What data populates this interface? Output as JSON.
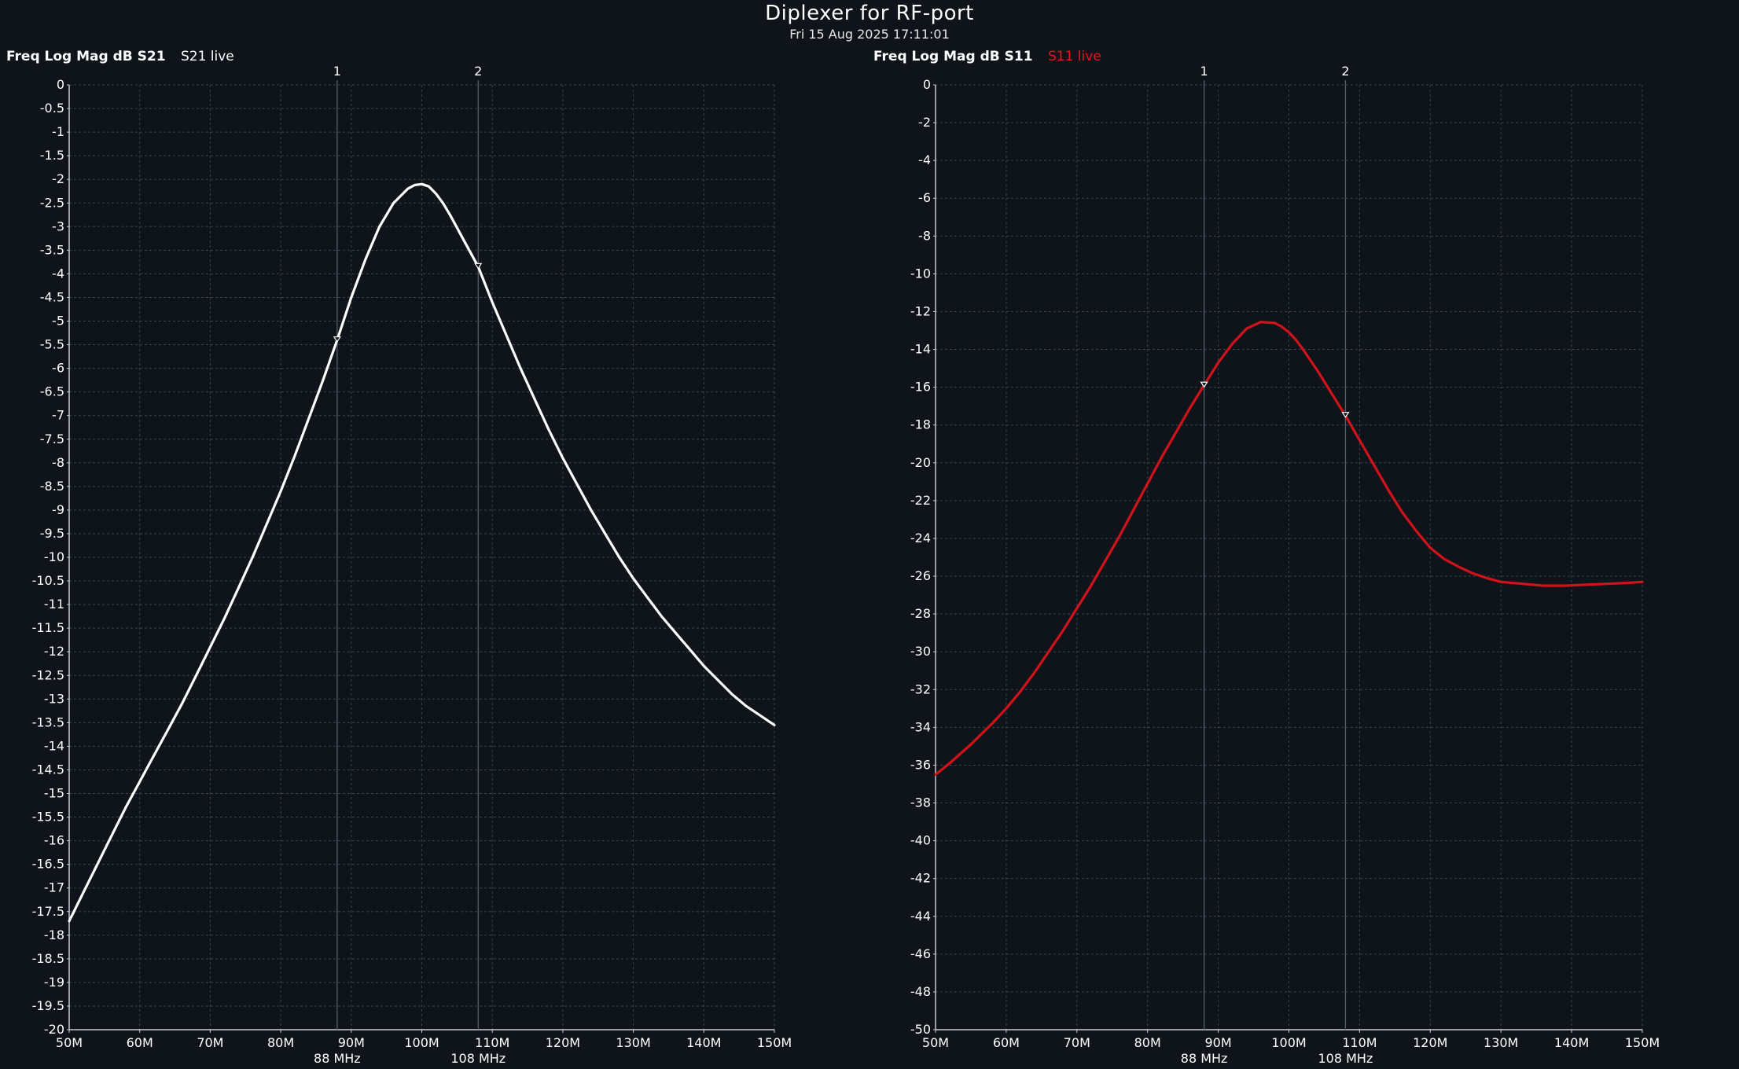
{
  "header": {
    "title": "Diplexer for RF-port",
    "timestamp": "Fri 15 Aug 2025 17:11:01"
  },
  "colors": {
    "background": "#0f141b",
    "grid": "#3a4350",
    "axis": "#c9ccd1",
    "marker_line": "#56606c"
  },
  "chart_data": [
    {
      "type": "line",
      "format_label": "Freq Log Mag dB S21",
      "live_label": "S21 live",
      "live_color": "#ffffff",
      "trace_color": "#ffffff",
      "xlabel": "Frequency",
      "ylabel": "dB",
      "xlim": [
        50,
        150
      ],
      "ylim": [
        -20,
        0
      ],
      "y_tick_step": 0.5,
      "x_ticks": [
        50,
        60,
        70,
        80,
        90,
        100,
        110,
        120,
        130,
        140,
        150
      ],
      "x_tick_labels": [
        "50M",
        "60M",
        "70M",
        "80M",
        "90M",
        "100M",
        "110M",
        "120M",
        "130M",
        "140M",
        "150M"
      ],
      "y_tick_labels": [
        "0",
        "-0.5",
        "-1",
        "-1.5",
        "-2",
        "-2.5",
        "-3",
        "-3.5",
        "-4",
        "-4.5",
        "-5",
        "-5.5",
        "-6",
        "-6.5",
        "-7",
        "-7.5",
        "-8",
        "-8.5",
        "-9",
        "-9.5",
        "-10",
        "-10.5",
        "-11",
        "-11.5",
        "-12",
        "-12.5",
        "-13",
        "-13.5",
        "-14",
        "-14.5",
        "-15",
        "-15.5",
        "-16",
        "-16.5",
        "-17",
        "-17.5",
        "-18",
        "-18.5",
        "-19",
        "-19.5",
        "-20"
      ],
      "markers": [
        {
          "id": "1",
          "freq": 88,
          "label": "88 MHz"
        },
        {
          "id": "2",
          "freq": 108,
          "label": "108 MHz"
        }
      ],
      "series": [
        {
          "name": "S21",
          "x": [
            50,
            52,
            55,
            58,
            60,
            62,
            64,
            66,
            68,
            70,
            72,
            74,
            76,
            78,
            80,
            82,
            84,
            86,
            88,
            90,
            92,
            94,
            96,
            98,
            99,
            100,
            101,
            102,
            103,
            104,
            106,
            108,
            110,
            112,
            114,
            116,
            118,
            120,
            122,
            124,
            126,
            128,
            130,
            132,
            134,
            136,
            138,
            140,
            142,
            144,
            146,
            148,
            150
          ],
          "values": [
            -17.7,
            -17.1,
            -16.2,
            -15.3,
            -14.75,
            -14.2,
            -13.65,
            -13.1,
            -12.5,
            -11.9,
            -11.3,
            -10.65,
            -10.0,
            -9.3,
            -8.6,
            -7.85,
            -7.05,
            -6.25,
            -5.4,
            -4.5,
            -3.7,
            -3.0,
            -2.5,
            -2.2,
            -2.12,
            -2.1,
            -2.15,
            -2.3,
            -2.5,
            -2.75,
            -3.3,
            -3.85,
            -4.6,
            -5.3,
            -6.0,
            -6.65,
            -7.3,
            -7.9,
            -8.45,
            -9.0,
            -9.5,
            -10.0,
            -10.45,
            -10.85,
            -11.25,
            -11.6,
            -11.95,
            -12.3,
            -12.6,
            -12.9,
            -13.15,
            -13.35,
            -13.55
          ]
        }
      ]
    },
    {
      "type": "line",
      "format_label": "Freq Log Mag dB S11",
      "live_label": "S11 live",
      "live_color": "#e8141e",
      "trace_color": "#d0131b",
      "xlabel": "Frequency",
      "ylabel": "dB",
      "xlim": [
        50,
        150
      ],
      "ylim": [
        -50,
        0
      ],
      "y_tick_step": 2,
      "x_ticks": [
        50,
        60,
        70,
        80,
        90,
        100,
        110,
        120,
        130,
        140,
        150
      ],
      "x_tick_labels": [
        "50M",
        "60M",
        "70M",
        "80M",
        "90M",
        "100M",
        "110M",
        "120M",
        "130M",
        "140M",
        "150M"
      ],
      "y_tick_labels": [
        "0",
        "-2",
        "-4",
        "-6",
        "-8",
        "-10",
        "-12",
        "-14",
        "-16",
        "-18",
        "-20",
        "-22",
        "-24",
        "-26",
        "-28",
        "-30",
        "-32",
        "-34",
        "-36",
        "-38",
        "-40",
        "-42",
        "-44",
        "-46",
        "-48",
        "-50"
      ],
      "markers": [
        {
          "id": "1",
          "freq": 88,
          "label": "88 MHz"
        },
        {
          "id": "2",
          "freq": 108,
          "label": "108 MHz"
        }
      ],
      "series": [
        {
          "name": "S11",
          "x": [
            50,
            52,
            55,
            58,
            60,
            62,
            64,
            66,
            68,
            70,
            72,
            74,
            76,
            78,
            80,
            82,
            84,
            86,
            88,
            90,
            92,
            94,
            96,
            98,
            99,
            100,
            101,
            102,
            104,
            106,
            108,
            110,
            112,
            114,
            116,
            118,
            120,
            122,
            124,
            126,
            128,
            130,
            133,
            136,
            139,
            142,
            145,
            148,
            150
          ],
          "values": [
            -36.5,
            -35.9,
            -34.9,
            -33.8,
            -33.0,
            -32.1,
            -31.1,
            -30.0,
            -28.9,
            -27.7,
            -26.5,
            -25.2,
            -23.9,
            -22.5,
            -21.1,
            -19.7,
            -18.4,
            -17.1,
            -15.9,
            -14.7,
            -13.7,
            -12.9,
            -12.55,
            -12.6,
            -12.8,
            -13.1,
            -13.5,
            -14.0,
            -15.1,
            -16.3,
            -17.5,
            -18.8,
            -20.1,
            -21.4,
            -22.6,
            -23.6,
            -24.5,
            -25.1,
            -25.5,
            -25.85,
            -26.1,
            -26.3,
            -26.4,
            -26.5,
            -26.5,
            -26.45,
            -26.4,
            -26.35,
            -26.3
          ]
        }
      ]
    }
  ]
}
